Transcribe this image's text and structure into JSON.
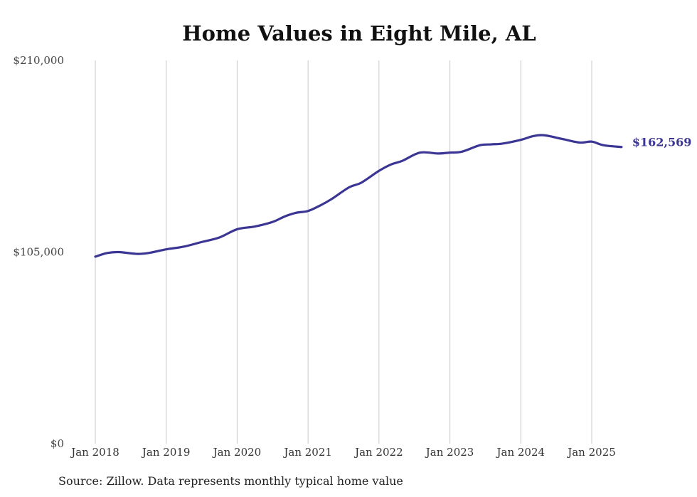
{
  "chart_data": {
    "type": "line",
    "title": "Home Values in Eight Mile, AL",
    "xlabel": "",
    "ylabel": "",
    "ylim": [
      0,
      210000
    ],
    "y_ticks": [
      {
        "value": 0,
        "label": "$0"
      },
      {
        "value": 105000,
        "label": "$105,000"
      },
      {
        "value": 210000,
        "label": "$210,000"
      }
    ],
    "x_ticks": [
      {
        "value": 2018.0,
        "label": "Jan 2018"
      },
      {
        "value": 2019.0,
        "label": "Jan 2019"
      },
      {
        "value": 2020.0,
        "label": "Jan 2020"
      },
      {
        "value": 2021.0,
        "label": "Jan 2021"
      },
      {
        "value": 2022.0,
        "label": "Jan 2022"
      },
      {
        "value": 2023.0,
        "label": "Jan 2023"
      },
      {
        "value": 2024.0,
        "label": "Jan 2024"
      },
      {
        "value": 2025.0,
        "label": "Jan 2025"
      }
    ],
    "grid": "vertical",
    "line_color": "#3b3594",
    "end_label": "$162,569",
    "x": [
      2018.0,
      2018.17,
      2018.33,
      2018.58,
      2018.75,
      2019.0,
      2019.25,
      2019.5,
      2019.75,
      2020.0,
      2020.25,
      2020.5,
      2020.67,
      2020.83,
      2021.0,
      2021.17,
      2021.33,
      2021.58,
      2021.75,
      2022.0,
      2022.17,
      2022.33,
      2022.58,
      2022.83,
      2023.0,
      2023.17,
      2023.42,
      2023.58,
      2023.75,
      2024.0,
      2024.17,
      2024.33,
      2024.58,
      2024.83,
      2025.0,
      2025.17,
      2025.42
    ],
    "y": [
      102500,
      104500,
      105000,
      104000,
      104500,
      106500,
      108000,
      110500,
      113000,
      117500,
      119000,
      121500,
      124500,
      126500,
      127500,
      130500,
      134000,
      140500,
      143000,
      149500,
      153000,
      155000,
      159500,
      159000,
      159500,
      160000,
      163500,
      164000,
      164500,
      166500,
      168500,
      169000,
      167000,
      165000,
      165500,
      163500,
      162569
    ]
  },
  "source_note": "Source: Zillow. Data represents monthly typical home value"
}
